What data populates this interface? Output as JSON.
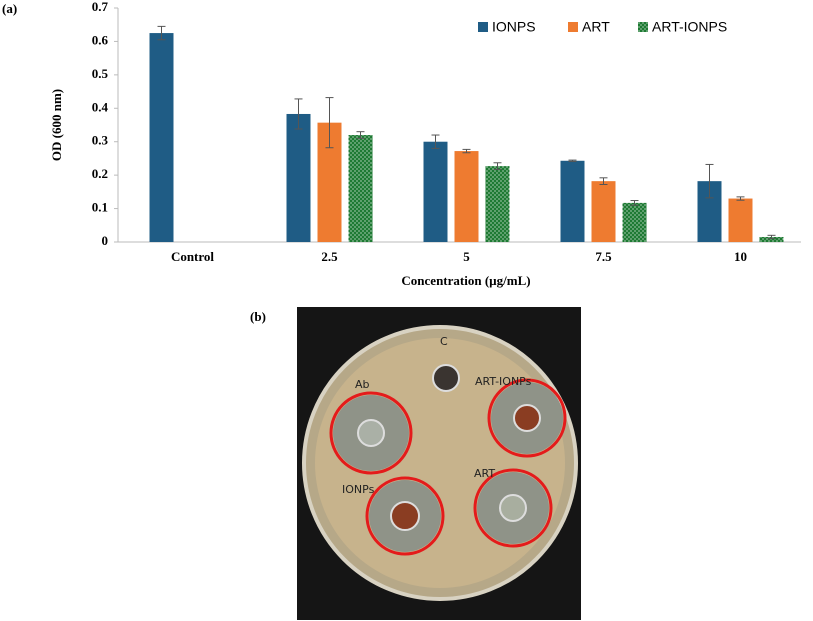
{
  "chart_data": {
    "type": "bar",
    "panel_label": "(a)",
    "x_label": "Concentration  (µg/mL)",
    "y_label": "OD (600 nm)",
    "categories": [
      "Control",
      "2.5",
      "5",
      "7.5",
      "10"
    ],
    "series": [
      {
        "name": "IONPS",
        "color": "#1f5c85",
        "values": [
          0.625,
          0.383,
          0.3,
          0.243,
          0.182
        ],
        "errors": [
          0.02,
          0.045,
          0.02,
          0.002,
          0.05
        ]
      },
      {
        "name": "ART",
        "color": "#ee7b30",
        "values": [
          null,
          0.357,
          0.272,
          0.182,
          0.13
        ],
        "errors": [
          null,
          0.075,
          0.005,
          0.01,
          0.005
        ]
      },
      {
        "name": "ART-IONPS",
        "color": "#1e7a33",
        "dotted": true,
        "values": [
          null,
          0.32,
          0.227,
          0.117,
          0.015
        ],
        "errors": [
          null,
          0.01,
          0.01,
          0.007,
          0.005
        ]
      }
    ],
    "ylim": [
      0,
      0.7
    ],
    "yticks": [
      0,
      0.1,
      0.2,
      0.3,
      0.4,
      0.5,
      0.6,
      0.7
    ],
    "grid": false,
    "legend": "top-right"
  },
  "panel_b": {
    "label": "(b)",
    "annotations": [
      "C",
      "Ab",
      "ART-IONPs",
      "IONPs",
      "ART"
    ]
  }
}
